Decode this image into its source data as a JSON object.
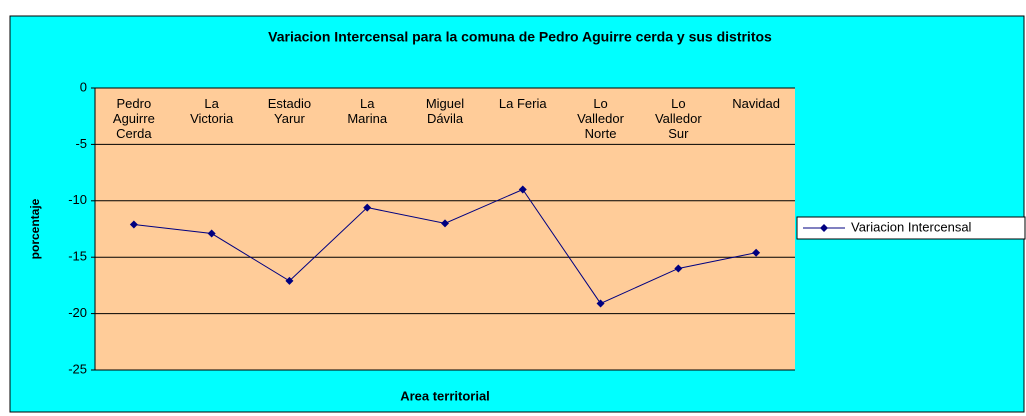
{
  "chart_data": {
    "type": "line",
    "title": "Variacion Intercensal para la comuna de Pedro Aguirre cerda y sus distritos",
    "x_label": "Area territorial",
    "y_label": "porcentaje",
    "categories": [
      "Pedro Aguirre Cerda",
      "La Victoria",
      "Estadio Yarur",
      "La Marina",
      "Miguel Dávila",
      "La Feria",
      "Lo Valledor Norte",
      "Lo Valledor Sur",
      "Navidad"
    ],
    "series": [
      {
        "name": "Variacion Intercensal",
        "color": "#000080",
        "values": [
          -12.1,
          -12.9,
          -17.1,
          -10.6,
          -12.0,
          -9.0,
          -19.1,
          -16.0,
          -14.6
        ]
      }
    ],
    "ylim": [
      -25,
      0
    ],
    "yticks": [
      0,
      -5,
      -10,
      -15,
      -20,
      -25
    ],
    "grid": true,
    "legend": "right"
  }
}
